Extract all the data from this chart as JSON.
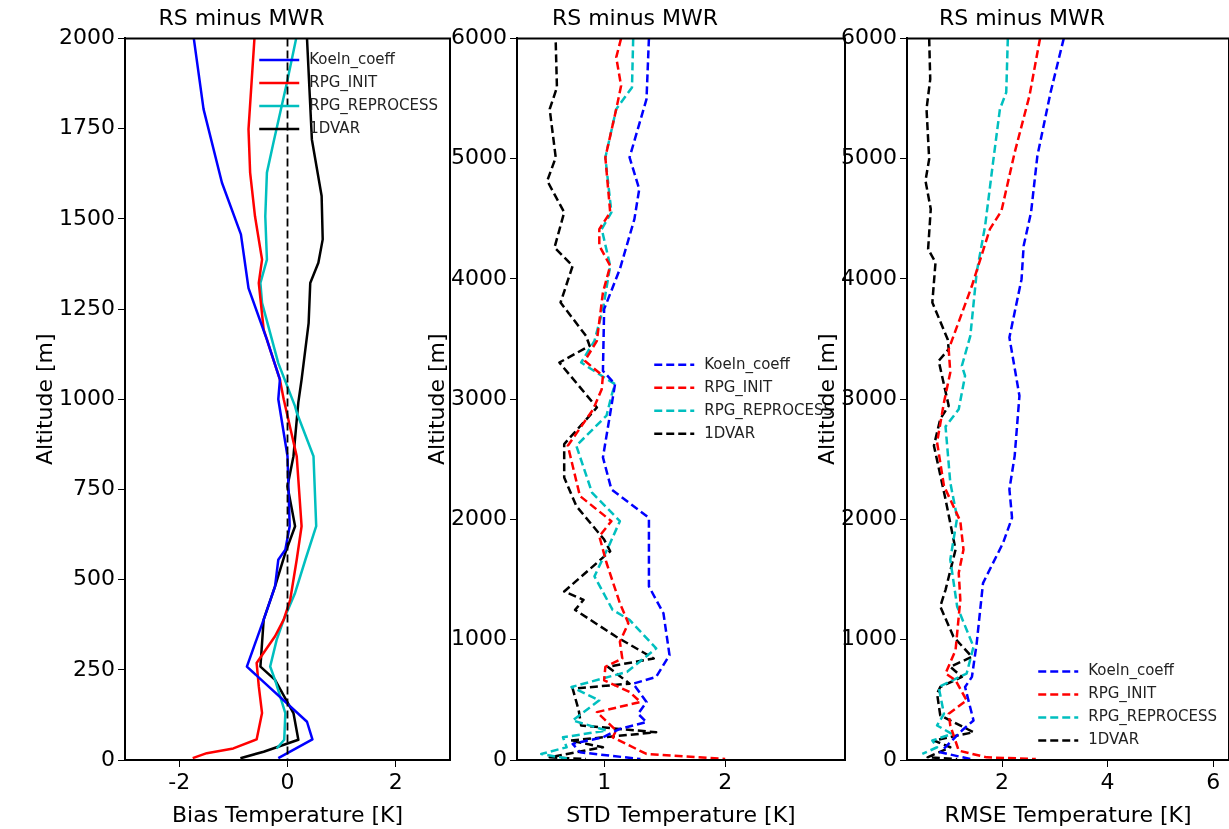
{
  "chart_data": [
    {
      "type": "line",
      "title": "RS minus MWR",
      "xlabel": "Bias Temperature [K]",
      "ylabel": "Altitude [m]",
      "xlim": [
        -3,
        3
      ],
      "xticks": [
        -2,
        0,
        2
      ],
      "ylim": [
        0,
        2000
      ],
      "yticks": [
        0,
        250,
        500,
        750,
        1000,
        1250,
        1500,
        1750,
        2000
      ],
      "grid": false,
      "legend": "top right",
      "line_style": "solid",
      "ref_lines": [
        {
          "axis": "x",
          "value": 0,
          "color": "#000000",
          "line_style": "dashed"
        }
      ],
      "series": [
        {
          "name": "Koeln_coeff",
          "color": "#0000ff",
          "x": [
            -1.73,
            -1.55,
            -1.21,
            -0.86,
            -0.72,
            -0.38,
            -0.14,
            -0.17,
            0,
            0.04,
            -0.04,
            -0.17,
            -0.23,
            -0.44,
            -0.75,
            0.36,
            0.46,
            -0.17
          ],
          "values": [
            2000,
            1804,
            1600,
            1457,
            1308,
            1165,
            1054,
            1000,
            842,
            648,
            583,
            555,
            481,
            389,
            259,
            106,
            57,
            5
          ]
        },
        {
          "name": "RPG_INIT",
          "color": "#ff0000",
          "x": [
            -0.61,
            -0.72,
            -0.69,
            -0.6,
            -0.47,
            -0.53,
            -0.44,
            -0.14,
            -0.07,
            0.17,
            0.26,
            0.17,
            0.05,
            -0.07,
            -0.23,
            -0.57,
            -0.53,
            -0.47,
            -0.57,
            -1.0,
            -1.49,
            -1.75
          ],
          "values": [
            2000,
            1748,
            1628,
            1507,
            1387,
            1322,
            1193,
            1054,
            1000,
            842,
            648,
            555,
            444,
            389,
            343,
            269,
            204,
            130,
            57,
            32,
            19,
            5
          ]
        },
        {
          "name": "RPG_REPROCESS",
          "color": "#00bfbf",
          "x": [
            0.16,
            -0.01,
            -0.26,
            -0.38,
            -0.41,
            -0.38,
            -0.5,
            -0.47,
            -0.17,
            0.14,
            0.17,
            0.48,
            0.53,
            0.33,
            0.14,
            -0.07,
            -0.2,
            -0.32,
            -0.23,
            -0.04,
            -0.06,
            -0.2
          ],
          "values": [
            2000,
            1878,
            1711,
            1628,
            1507,
            1387,
            1322,
            1267,
            1100,
            980,
            963,
            842,
            648,
            555,
            463,
            389,
            333,
            259,
            222,
            130,
            56,
            32
          ]
        },
        {
          "name": "1DVAR",
          "color": "#000000",
          "x": [
            0.36,
            0.45,
            0.63,
            0.65,
            0.57,
            0.42,
            0.39,
            0.26,
            0.2,
            0.11,
            0,
            0.14,
            -0.04,
            -0.23,
            -0.44,
            -0.5,
            -0.23,
            0.11,
            0.2,
            -0.44,
            -0.87
          ],
          "values": [
            2000,
            1720,
            1563,
            1443,
            1378,
            1322,
            1211,
            1054,
            991,
            842,
            759,
            648,
            574,
            481,
            389,
            259,
            222,
            130,
            56,
            23,
            5
          ]
        }
      ]
    },
    {
      "type": "line",
      "title": "RS minus MWR",
      "xlabel": "STD Temperature [K]",
      "ylabel": "Altitude [m]",
      "xlim": [
        0.28,
        2.99
      ],
      "xticks": [
        1,
        2
      ],
      "ylim": [
        0,
        6000
      ],
      "yticks": [
        0,
        1000,
        2000,
        3000,
        4000,
        5000,
        6000
      ],
      "grid": false,
      "legend": "right",
      "line_style": "dashed",
      "series": [
        {
          "name": "Koeln_coeff",
          "color": "#0000ff",
          "x": [
            1.37,
            1.35,
            1.21,
            1.29,
            1.25,
            1.13,
            1.0,
            0.99,
            1.09,
            1.07,
            0.99,
            1.06,
            1.37,
            1.37,
            1.49,
            1.54,
            1.43,
            1.24,
            1.35,
            1.28,
            1.35,
            1.13,
            0.99,
            0.74,
            0.8,
            1.3
          ],
          "values": [
            6000,
            5495,
            5010,
            4747,
            4497,
            4082,
            3749,
            3236,
            3125,
            3003,
            2516,
            2251,
            2014,
            1443,
            1220,
            872,
            691,
            635,
            482,
            384,
            315,
            259,
            189,
            134,
            64,
            8
          ]
        },
        {
          "name": "RPG_INIT",
          "color": "#ff0000",
          "x": [
            1.14,
            1.1,
            1.14,
            1.1,
            1.01,
            1.05,
            0.96,
            0.96,
            1.05,
            0.99,
            0.94,
            0.84,
            0.99,
            0.98,
            0.91,
            0.7,
            0.8,
            1.06,
            0.96,
            1.02,
            1.13,
            1.2,
            1.13,
            1.15,
            1.01,
            1.0,
            1.21,
            1.3,
            0.94,
            1.1,
            1.07,
            1.35,
            2.0
          ],
          "values": [
            6000,
            5842,
            5606,
            5412,
            5010,
            4553,
            4414,
            4276,
            4109,
            3887,
            3485,
            3319,
            3194,
            3083,
            2917,
            2613,
            2195,
            1986,
            1861,
            1638,
            1304,
            1137,
            983,
            844,
            775,
            663,
            566,
            482,
            398,
            245,
            189,
            50,
            8
          ]
        },
        {
          "name": "RPG_REPROCESS",
          "color": "#00bfbf",
          "x": [
            1.24,
            1.23,
            1.1,
            1.01,
            1.06,
            0.98,
            1.05,
            0.99,
            0.92,
            0.81,
            0.85,
            1.09,
            1.06,
            1.02,
            0.77,
            0.9,
            1.13,
            1.05,
            0.92,
            1.07,
            1.21,
            1.43,
            1.19,
            0.73,
            0.96,
            0.74,
            1.02,
            0.66,
            0.69,
            0.48,
            0.72
          ],
          "values": [
            6000,
            5592,
            5412,
            5010,
            4553,
            4414,
            4109,
            3749,
            3485,
            3305,
            3278,
            3125,
            3028,
            2864,
            2613,
            2223,
            1986,
            1805,
            1527,
            1248,
            1165,
            928,
            733,
            607,
            496,
            329,
            245,
            189,
            106,
            50,
            8
          ]
        },
        {
          "name": "1DVAR",
          "color": "#000000",
          "x": [
            0.6,
            0.61,
            0.55,
            0.6,
            0.53,
            0.67,
            0.59,
            0.74,
            0.64,
            0.85,
            0.88,
            0.63,
            0.94,
            0.67,
            0.67,
            0.77,
            1.0,
            1.05,
            0.67,
            0.83,
            0.76,
            1.1,
            1.41,
            1.03,
            1.21,
            0.74,
            0.79,
            0.81,
            1.43,
            0.72,
            0.99,
            0.55,
            0.85
          ],
          "values": [
            5967,
            5592,
            5412,
            5010,
            4816,
            4553,
            4262,
            4109,
            3804,
            3527,
            3444,
            3305,
            2931,
            2627,
            2349,
            2112,
            1833,
            1736,
            1401,
            1332,
            1248,
            1025,
            844,
            775,
            635,
            593,
            412,
            287,
            231,
            162,
            106,
            22,
            8
          ]
        }
      ]
    },
    {
      "type": "line",
      "title": "RS minus MWR",
      "xlabel": "RMSE Temperature [K]",
      "ylabel": "Altitude [m]",
      "xlim": [
        0.2,
        6.3
      ],
      "xticks": [
        2,
        4,
        6
      ],
      "ylim": [
        0,
        6000
      ],
      "yticks": [
        0,
        1000,
        2000,
        3000,
        4000,
        5000,
        6000
      ],
      "grid": false,
      "legend": "bottom right",
      "line_style": "dashed",
      "series": [
        {
          "name": "Koeln_coeff",
          "color": "#0000ff",
          "x": [
            3.17,
            2.92,
            2.67,
            2.55,
            2.41,
            2.37,
            2.14,
            2.33,
            2.24,
            2.14,
            2.19,
            2.02,
            1.64,
            1.52,
            1.43,
            1.3,
            1.46,
            1.24,
            0.83,
            1.4
          ],
          "values": [
            6000,
            5551,
            5024,
            4553,
            4276,
            3998,
            3513,
            3028,
            2529,
            2251,
            2014,
            1805,
            1471,
            970,
            691,
            607,
            329,
            245,
            64,
            8
          ]
        },
        {
          "name": "RPG_INIT",
          "color": "#ff0000",
          "x": [
            2.72,
            2.52,
            2.24,
            1.99,
            1.77,
            1.43,
            0.99,
            1.02,
            0.9,
            0.77,
            0.9,
            1.21,
            1.27,
            1.18,
            1.21,
            1.12,
            0.93,
            1.12,
            1.33,
            0.99,
            1.02,
            1.18,
            1.71,
            2.64
          ],
          "values": [
            6000,
            5523,
            5052,
            4567,
            4414,
            3943,
            3416,
            3222,
            2973,
            2641,
            2279,
            1986,
            1749,
            1555,
            1332,
            914,
            719,
            663,
            496,
            384,
            287,
            78,
            22,
            8
          ]
        },
        {
          "name": "RPG_REPROCESS",
          "color": "#00bfbf",
          "x": [
            2.11,
            2.08,
            1.96,
            1.83,
            1.68,
            1.52,
            1.4,
            1.24,
            1.3,
            1.18,
            0.93,
            1.02,
            1.15,
            1.02,
            1.15,
            1.46,
            1.33,
            0.8,
            0.9,
            0.77,
            1.05,
            0.68,
            0.77,
            0.49
          ],
          "values": [
            6000,
            5551,
            5412,
            4969,
            4442,
            4054,
            3527,
            3278,
            3194,
            2917,
            2772,
            2307,
            2014,
            1666,
            1276,
            942,
            719,
            607,
            384,
            287,
            217,
            162,
            106,
            50
          ]
        },
        {
          "name": "1DVAR",
          "color": "#000000",
          "x": [
            0.62,
            0.64,
            0.57,
            0.62,
            0.55,
            0.65,
            0.6,
            0.74,
            0.68,
            0.97,
            0.99,
            0.8,
            0.99,
            0.83,
            0.71,
            0.93,
            1.12,
            0.93,
            0.83,
            1.08,
            1.43,
            1.02,
            1.24,
            0.83,
            0.77,
            0.83,
            1.46,
            0.71,
            1.02,
            0.59,
            1.15
          ],
          "values": [
            6000,
            5662,
            5412,
            4996,
            4816,
            4581,
            4248,
            4137,
            3804,
            3499,
            3416,
            3319,
            2945,
            2836,
            2613,
            2168,
            1749,
            1415,
            1276,
            1025,
            858,
            775,
            691,
            607,
            552,
            371,
            231,
            162,
            106,
            22,
            8
          ]
        }
      ]
    }
  ]
}
